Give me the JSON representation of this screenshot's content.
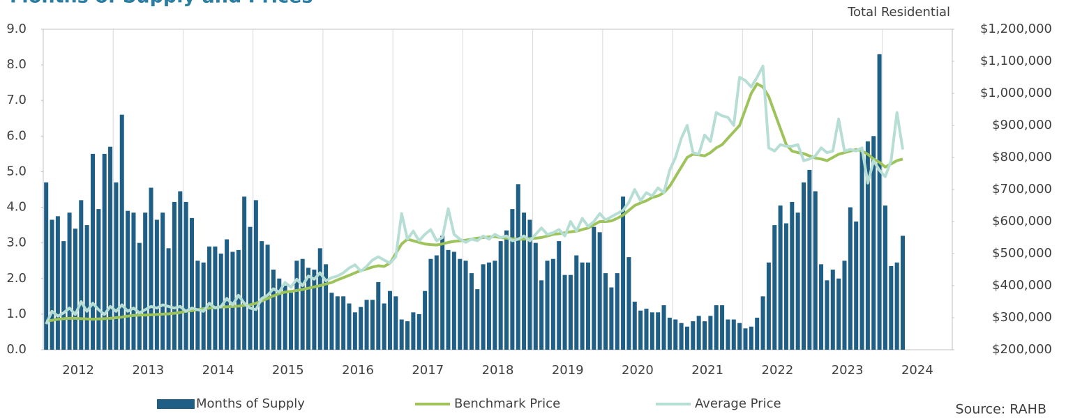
{
  "chart_data": {
    "type": "bar-line",
    "title": "Months of Supply and Prices",
    "subtitle": "Total Residential",
    "source": "Source: RAHB",
    "categories": [
      null,
      null,
      null,
      null,
      null,
      null,
      "2012",
      null,
      null,
      null,
      null,
      null,
      null,
      null,
      null,
      null,
      null,
      null,
      "2013",
      null,
      null,
      null,
      null,
      null,
      null,
      null,
      null,
      null,
      null,
      null,
      "2014",
      null,
      null,
      null,
      null,
      null,
      null,
      null,
      null,
      null,
      null,
      null,
      "2015",
      null,
      null,
      null,
      null,
      null,
      null,
      null,
      null,
      null,
      null,
      null,
      "2016",
      null,
      null,
      null,
      null,
      null,
      null,
      null,
      null,
      null,
      null,
      null,
      "2017",
      null,
      null,
      null,
      null,
      null,
      null,
      null,
      null,
      null,
      null,
      null,
      "2018",
      null,
      null,
      null,
      null,
      null,
      null,
      null,
      null,
      null,
      null,
      null,
      "2019",
      null,
      null,
      null,
      null,
      null,
      null,
      null,
      null,
      null,
      null,
      null,
      "2020",
      null,
      null,
      null,
      null,
      null,
      null,
      null,
      null,
      null,
      null,
      null,
      "2021",
      null,
      null,
      null,
      null,
      null,
      null,
      null,
      null,
      null,
      null,
      null,
      "2022",
      null,
      null,
      null,
      null,
      null,
      null,
      null,
      null,
      null,
      null,
      null,
      "2023",
      null,
      null,
      null,
      null,
      null,
      null,
      null,
      null,
      null,
      null,
      null,
      "2024",
      null,
      null,
      null,
      null,
      null
    ],
    "series": [
      {
        "name": "Months of Supply",
        "kind": "bar",
        "color": "#1f5f86",
        "axis": "y",
        "values": [
          4.7,
          3.65,
          3.75,
          3.05,
          3.85,
          3.4,
          4.2,
          3.5,
          5.5,
          3.95,
          5.5,
          5.7,
          4.7,
          6.6,
          3.9,
          3.85,
          3.0,
          3.85,
          4.55,
          3.65,
          3.85,
          2.85,
          4.15,
          4.45,
          4.15,
          3.7,
          2.5,
          2.45,
          2.9,
          2.9,
          2.7,
          3.1,
          2.75,
          2.8,
          4.3,
          3.45,
          4.2,
          3.05,
          2.95,
          2.25,
          2.0,
          1.8,
          1.6,
          2.5,
          2.55,
          2.3,
          2.25,
          2.85,
          2.4,
          1.6,
          1.5,
          1.5,
          1.3,
          1.05,
          1.2,
          1.4,
          1.4,
          1.9,
          1.3,
          1.65,
          1.5,
          0.85,
          0.8,
          1.05,
          1.0,
          1.65,
          2.55,
          2.65,
          3.2,
          2.8,
          2.75,
          2.55,
          2.5,
          2.15,
          1.7,
          2.4,
          2.45,
          2.5,
          3.05,
          3.35,
          3.95,
          4.65,
          3.85,
          3.65,
          3.0,
          1.95,
          2.5,
          2.55,
          3.05,
          2.1,
          2.1,
          2.65,
          2.45,
          2.45,
          3.45,
          3.3,
          2.15,
          1.75,
          2.15,
          4.3,
          2.6,
          1.35,
          1.1,
          1.15,
          1.05,
          1.05,
          1.25,
          0.9,
          0.85,
          0.75,
          0.65,
          0.8,
          0.95,
          0.8,
          0.95,
          1.25,
          1.25,
          0.85,
          0.85,
          0.75,
          0.6,
          0.65,
          0.9,
          1.5,
          2.45,
          3.5,
          4.05,
          3.55,
          4.15,
          3.85,
          4.7,
          5.05,
          4.45,
          2.4,
          1.95,
          2.25,
          2.0,
          2.5,
          4.0,
          3.6,
          5.6,
          5.85,
          6.0,
          8.3,
          4.05,
          2.35,
          2.45,
          3.2,
          null,
          null,
          null,
          null,
          null,
          null,
          null,
          null
        ]
      },
      {
        "name": "Benchmark Price",
        "kind": "line",
        "color": "#9dc35a",
        "axis": "y2",
        "values": [
          290000,
          292000,
          295000,
          297000,
          298000,
          298000,
          297000,
          296000,
          295000,
          296000,
          297000,
          298000,
          300000,
          302000,
          305000,
          307000,
          308000,
          308000,
          309000,
          310000,
          311000,
          312000,
          314000,
          316000,
          320000,
          322000,
          325000,
          328000,
          330000,
          332000,
          333000,
          334000,
          335000,
          336000,
          338000,
          340000,
          345000,
          352000,
          360000,
          368000,
          375000,
          380000,
          382000,
          385000,
          388000,
          392000,
          396000,
          400000,
          405000,
          410000,
          418000,
          425000,
          432000,
          440000,
          447000,
          452000,
          458000,
          462000,
          460000,
          470000,
          500000,
          530000,
          545000,
          540000,
          535000,
          530000,
          528000,
          527000,
          530000,
          535000,
          538000,
          540000,
          542000,
          545000,
          548000,
          550000,
          552000,
          553000,
          550000,
          548000,
          546000,
          545000,
          545000,
          547000,
          548000,
          550000,
          555000,
          560000,
          562000,
          565000,
          568000,
          570000,
          575000,
          580000,
          590000,
          600000,
          600000,
          602000,
          610000,
          620000,
          635000,
          650000,
          658000,
          665000,
          675000,
          680000,
          690000,
          710000,
          740000,
          770000,
          800000,
          810000,
          808000,
          805000,
          815000,
          830000,
          840000,
          860000,
          880000,
          900000,
          950000,
          1000000,
          1030000,
          1020000,
          990000,
          940000,
          890000,
          840000,
          820000,
          815000,
          812000,
          805000,
          798000,
          795000,
          790000,
          800000,
          810000,
          815000,
          820000,
          825000,
          820000,
          810000,
          795000,
          785000,
          770000,
          780000,
          790000,
          795000,
          null,
          null,
          null,
          null,
          null,
          null,
          null,
          null
        ]
      },
      {
        "name": "Average Price",
        "kind": "line",
        "color": "#b7ded4",
        "axis": "y2",
        "values": [
          280000,
          320000,
          305000,
          315000,
          330000,
          310000,
          350000,
          320000,
          345000,
          325000,
          310000,
          335000,
          320000,
          340000,
          320000,
          330000,
          315000,
          325000,
          335000,
          330000,
          340000,
          335000,
          330000,
          335000,
          320000,
          330000,
          325000,
          320000,
          345000,
          330000,
          335000,
          360000,
          340000,
          370000,
          345000,
          330000,
          325000,
          360000,
          370000,
          390000,
          380000,
          410000,
          395000,
          420000,
          400000,
          430000,
          420000,
          440000,
          415000,
          425000,
          430000,
          440000,
          455000,
          465000,
          445000,
          460000,
          480000,
          490000,
          480000,
          470000,
          490000,
          625000,
          545000,
          570000,
          540000,
          560000,
          575000,
          540000,
          550000,
          640000,
          560000,
          545000,
          535000,
          545000,
          540000,
          555000,
          545000,
          560000,
          550000,
          555000,
          540000,
          545000,
          555000,
          540000,
          560000,
          580000,
          560000,
          565000,
          575000,
          555000,
          600000,
          570000,
          610000,
          585000,
          600000,
          625000,
          605000,
          615000,
          625000,
          635000,
          660000,
          700000,
          665000,
          690000,
          680000,
          705000,
          690000,
          760000,
          800000,
          860000,
          900000,
          815000,
          810000,
          870000,
          850000,
          940000,
          930000,
          925000,
          900000,
          1050000,
          1040000,
          1020000,
          1050000,
          1085000,
          830000,
          820000,
          840000,
          835000,
          835000,
          840000,
          790000,
          795000,
          805000,
          830000,
          815000,
          820000,
          920000,
          820000,
          825000,
          820000,
          830000,
          720000,
          790000,
          760000,
          740000,
          790000,
          940000,
          825000,
          null,
          null,
          null,
          null,
          null,
          null,
          null,
          null
        ]
      }
    ],
    "ylim": [
      0,
      9
    ],
    "yticks": [
      {
        "value": 0,
        "label": "0.0"
      },
      {
        "value": 1,
        "label": "1.0"
      },
      {
        "value": 2,
        "label": "2.0"
      },
      {
        "value": 3,
        "label": "3.0"
      },
      {
        "value": 4,
        "label": "4.0"
      },
      {
        "value": 5,
        "label": "5.0"
      },
      {
        "value": 6,
        "label": "6.0"
      },
      {
        "value": 7,
        "label": "7.0"
      },
      {
        "value": 8,
        "label": "8.0"
      },
      {
        "value": 9,
        "label": "9.0"
      }
    ],
    "y2lim": [
      200000,
      1200000
    ],
    "y2ticks": [
      {
        "value": 200000,
        "label": "$200,000"
      },
      {
        "value": 300000,
        "label": "$300,000"
      },
      {
        "value": 400000,
        "label": "$400,000"
      },
      {
        "value": 500000,
        "label": "$500,000"
      },
      {
        "value": 600000,
        "label": "$600,000"
      },
      {
        "value": 700000,
        "label": "$700,000"
      },
      {
        "value": 800000,
        "label": "$800,000"
      },
      {
        "value": 900000,
        "label": "$900,000"
      },
      {
        "value": 1000000,
        "label": "$1,000,000"
      },
      {
        "value": 1100000,
        "label": "$1,100,000"
      },
      {
        "value": 1200000,
        "label": "$1,200,000"
      }
    ],
    "legend": "bottom"
  }
}
